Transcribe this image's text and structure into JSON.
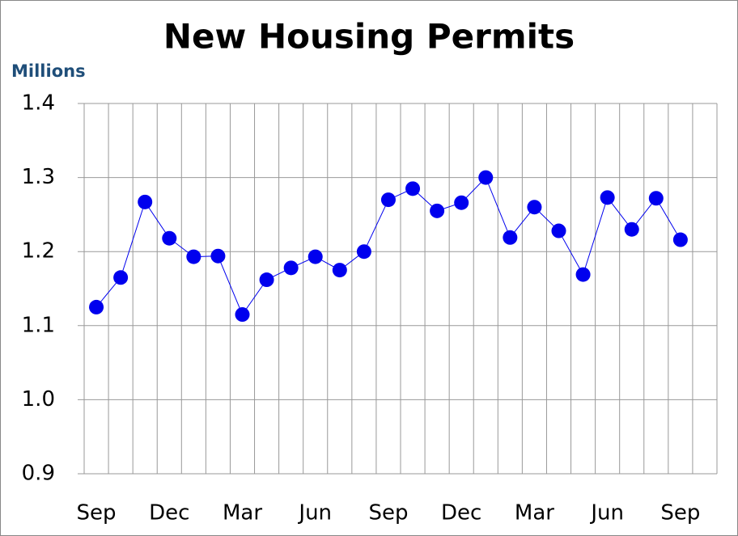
{
  "chart_data": {
    "type": "line",
    "title": "New Housing Permits",
    "y_label": "Millions",
    "categories": [
      "Sep",
      null,
      null,
      "Dec",
      null,
      null,
      "Mar",
      null,
      null,
      "Jun",
      null,
      null,
      "Sep",
      null,
      null,
      "Dec",
      null,
      null,
      "Mar",
      null,
      null,
      "Jun",
      null,
      null,
      "Sep",
      null
    ],
    "series": [
      {
        "name": "New Housing Permits",
        "color": "#0000ee",
        "values": [
          1.125,
          1.165,
          1.267,
          1.218,
          1.193,
          1.194,
          1.115,
          1.162,
          1.178,
          1.193,
          1.175,
          1.2,
          1.27,
          1.285,
          1.255,
          1.266,
          1.3,
          1.219,
          1.26,
          1.228,
          1.169,
          1.273,
          1.23,
          1.272,
          1.216,
          null
        ]
      }
    ],
    "ylim": [
      0.9,
      1.4
    ],
    "yticks": [
      0.9,
      {
        "value": 1.0,
        "label": "1.0"
      },
      1.1,
      1.2,
      1.3,
      1.4
    ],
    "grid": true
  }
}
